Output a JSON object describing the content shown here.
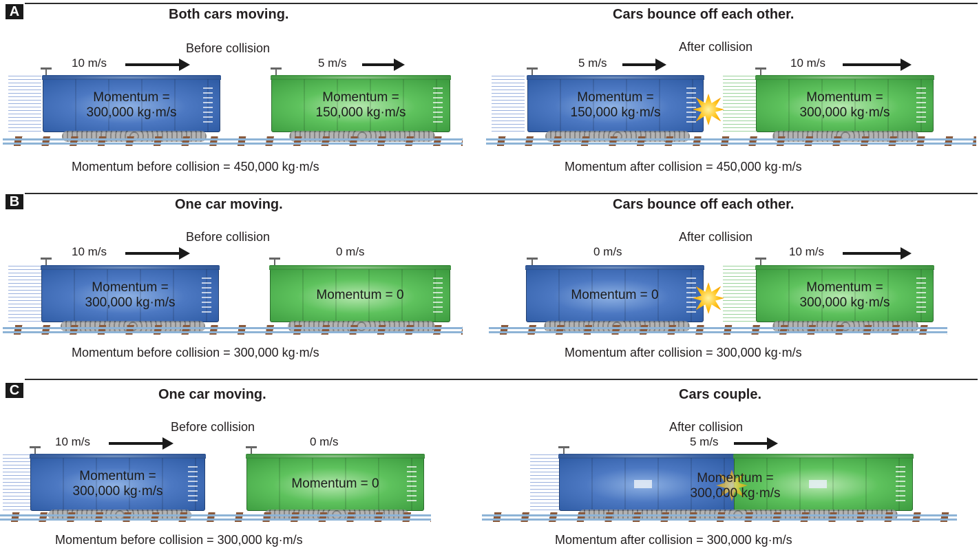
{
  "rows": [
    {
      "badge": "A",
      "left": {
        "title": "Both cars moving.",
        "caption": "Before collision",
        "car1": {
          "speed": "10 m/s",
          "momentum_line1": "Momentum =",
          "momentum_line2": "300,000 kg·m/s"
        },
        "car2": {
          "speed": "5 m/s",
          "momentum_line1": "Momentum =",
          "momentum_line2": "150,000 kg·m/s"
        },
        "total": "Momentum before collision = 450,000 kg·m/s"
      },
      "right": {
        "title": "Cars bounce off each other.",
        "caption": "After collision",
        "car1": {
          "speed": "5 m/s",
          "momentum_line1": "Momentum =",
          "momentum_line2": "150,000 kg·m/s"
        },
        "car2": {
          "speed": "10 m/s",
          "momentum_line1": "Momentum =",
          "momentum_line2": "300,000 kg·m/s"
        },
        "total": "Momentum after collision = 450,000 kg·m/s"
      }
    },
    {
      "badge": "B",
      "left": {
        "title": "One car moving.",
        "caption": "Before collision",
        "car1": {
          "speed": "10 m/s",
          "momentum_line1": "Momentum =",
          "momentum_line2": "300,000 kg·m/s"
        },
        "car2": {
          "speed": "0 m/s",
          "momentum_line1": "Momentum = 0",
          "momentum_line2": ""
        },
        "total": "Momentum before collision = 300,000 kg·m/s"
      },
      "right": {
        "title": "Cars bounce off each other.",
        "caption": "After collision",
        "car1": {
          "speed": "0 m/s",
          "momentum_line1": "Momentum = 0",
          "momentum_line2": ""
        },
        "car2": {
          "speed": "10 m/s",
          "momentum_line1": "Momentum =",
          "momentum_line2": "300,000 kg·m/s"
        },
        "total": "Momentum after collision = 300,000 kg·m/s"
      }
    },
    {
      "badge": "C",
      "left": {
        "title": "One car moving.",
        "caption": "Before collision",
        "car1": {
          "speed": "10 m/s",
          "momentum_line1": "Momentum =",
          "momentum_line2": "300,000 kg·m/s"
        },
        "car2": {
          "speed": "0 m/s",
          "momentum_line1": "Momentum = 0",
          "momentum_line2": ""
        },
        "total": "Momentum before collision = 300,000 kg·m/s"
      },
      "right": {
        "title": "Cars couple.",
        "caption": "After collision",
        "speed": "5 m/s",
        "momentum_line1": "Momentum =",
        "momentum_line2": "300,000 kg·m/s",
        "total": "Momentum after collision = 300,000 kg·m/s"
      }
    }
  ],
  "colors": {
    "blue_car": "#4c78c2",
    "green_car": "#5ec25d",
    "impact": "#ffc21a",
    "rail": "#8db3d6",
    "tie": "#8a5a3c"
  }
}
